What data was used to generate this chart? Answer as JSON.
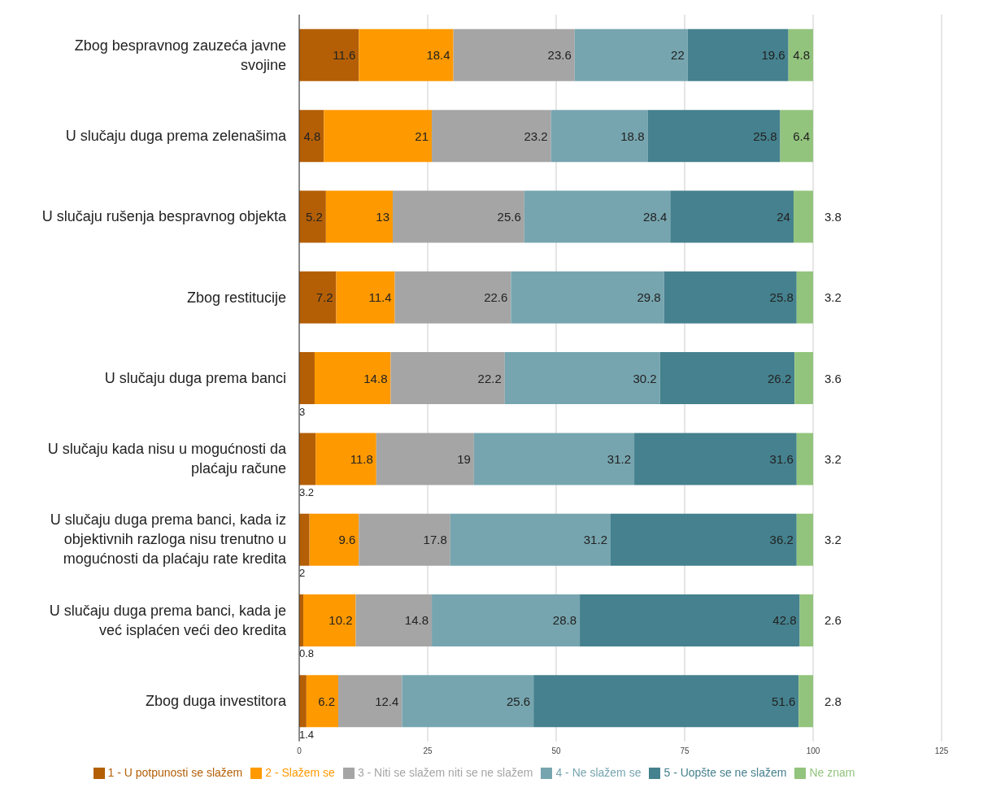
{
  "chart_data": {
    "type": "bar",
    "orientation": "horizontal",
    "stacked": true,
    "data_labels": true,
    "grid": "x",
    "legend": "bottom",
    "categories": [
      "Zbog bespravnog zauzeća javne svojine",
      "U slučaju duga prema zelenašima",
      "U slučaju rušenja bespravnog objekta",
      "Zbog restitucije",
      "U slučaju duga prema banci",
      "U slučaju kada nisu u mogućnosti da plaćaju račune",
      "U slučaju duga prema banci, kada iz objektivnih razloga nisu trenutno u mogućnosti da plaćaju rate kredita",
      "U slučaju duga prema banci, kada je već isplaćen veći deo kredita",
      "Zbog duga investitora"
    ],
    "xlim": [
      0,
      125
    ],
    "xticks": [
      0,
      25,
      50,
      75,
      100,
      125
    ],
    "series": [
      {
        "name": "1 - U potpunosti se slažem",
        "color": "#b45f06",
        "values": [
          11.6,
          4.8,
          5.2,
          7.2,
          3,
          3.2,
          2,
          0.8,
          1.4
        ]
      },
      {
        "name": "2 - Slažem se",
        "color": "#ff9900",
        "values": [
          18.4,
          21,
          13,
          11.4,
          14.8,
          11.8,
          9.6,
          10.2,
          6.2
        ]
      },
      {
        "name": "3 - Niti se slažem niti se ne slažem",
        "color": "#a5a5a5",
        "values": [
          23.6,
          23.2,
          25.6,
          22.6,
          22.2,
          19,
          17.8,
          14.8,
          12.4
        ]
      },
      {
        "name": "4 - Ne slažem se",
        "color": "#76a5af",
        "values": [
          22,
          18.8,
          28.4,
          29.8,
          30.2,
          31.2,
          31.2,
          28.8,
          25.6
        ]
      },
      {
        "name": "5 - Uopšte se ne slažem",
        "color": "#45818e",
        "values": [
          19.6,
          25.8,
          24,
          25.8,
          26.2,
          31.6,
          36.2,
          42.8,
          51.6
        ]
      },
      {
        "name": "Ne znam",
        "color": "#93c47d",
        "values": [
          4.8,
          6.4,
          3.8,
          3.2,
          3.6,
          3.2,
          3.2,
          2.6,
          2.8
        ]
      }
    ]
  }
}
